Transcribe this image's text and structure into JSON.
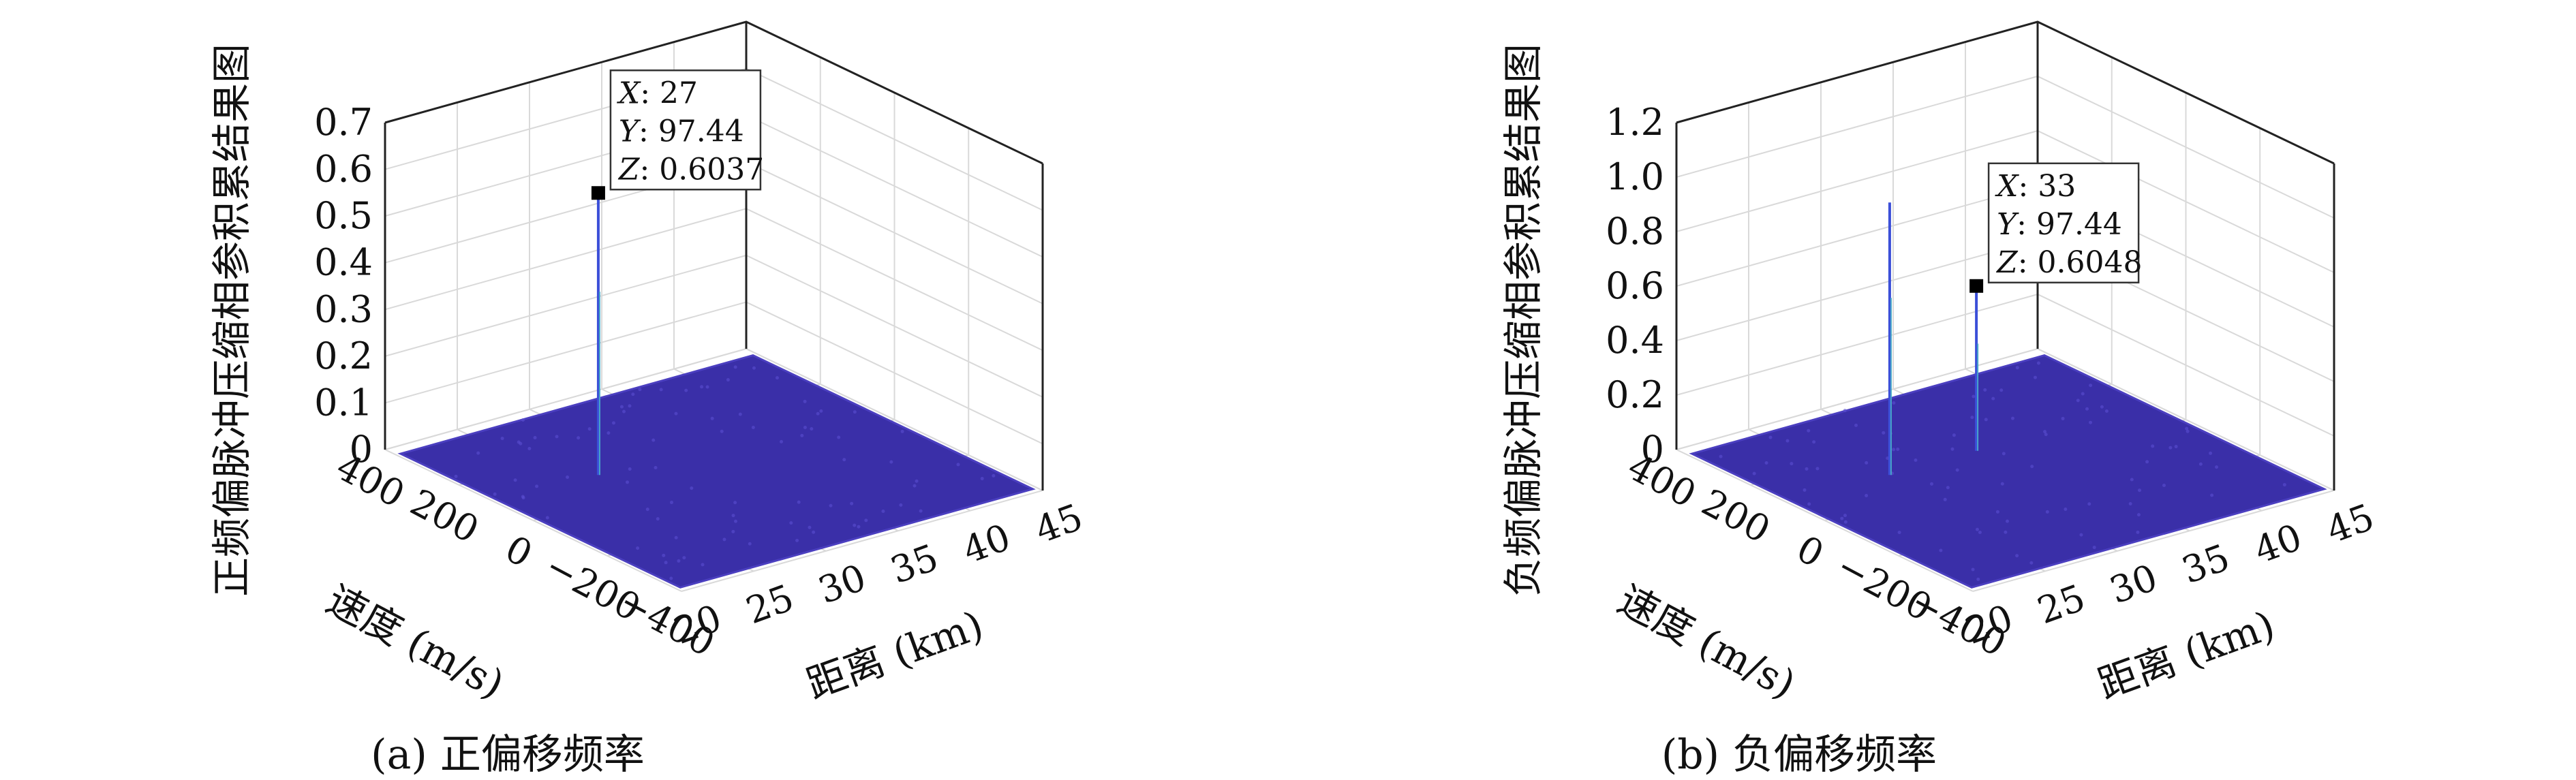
{
  "chart_data": [
    {
      "type": "surface3d",
      "caption": "(a) 正偏移频率",
      "xlabel": "距离 (km)",
      "ylabel": "速度 (m/s)",
      "zlabel": "正频偏脉冲压缩相参积累结果图",
      "x_ticks": [
        "20",
        "25",
        "30",
        "35",
        "40",
        "45"
      ],
      "y_ticks": [
        "400",
        "200",
        "0",
        "−200",
        "−400"
      ],
      "z_ticks": [
        "0",
        "0.1",
        "0.2",
        "0.3",
        "0.4",
        "0.5",
        "0.6",
        "0.7"
      ],
      "xlim": [
        20,
        45
      ],
      "ylim": [
        -400,
        400
      ],
      "zlim": [
        0,
        0.7
      ],
      "surface_color": "#3a2fa8",
      "peaks": [
        {
          "x": 27,
          "y": 97.44,
          "z": 0.6037
        }
      ],
      "datatip": {
        "x_key": "X",
        "x_value": "27",
        "y_key": "Y",
        "y_value": "97.44",
        "z_key": "Z",
        "z_value": "0.6037"
      }
    },
    {
      "type": "surface3d",
      "caption": "(b) 负偏移频率",
      "xlabel": "距离 (km)",
      "ylabel": "速度 (m/s)",
      "zlabel": "负频偏脉冲压缩相参积累结果图",
      "x_ticks": [
        "20",
        "25",
        "30",
        "35",
        "40",
        "45"
      ],
      "y_ticks": [
        "400",
        "200",
        "0",
        "−200",
        "−400"
      ],
      "z_ticks": [
        "0",
        "0.2",
        "0.4",
        "0.6",
        "0.8",
        "1.0",
        "1.2"
      ],
      "xlim": [
        20,
        45
      ],
      "ylim": [
        -400,
        400
      ],
      "zlim": [
        0,
        1.2
      ],
      "surface_color": "#3a2fa8",
      "peaks": [
        {
          "x": 27,
          "y": 97.44,
          "z": 1.0
        },
        {
          "x": 33,
          "y": 97.44,
          "z": 0.6048
        }
      ],
      "datatip": {
        "x_key": "X",
        "x_value": "33",
        "y_key": "Y",
        "y_value": "97.44",
        "z_key": "Z",
        "z_value": "0.6048"
      }
    }
  ]
}
